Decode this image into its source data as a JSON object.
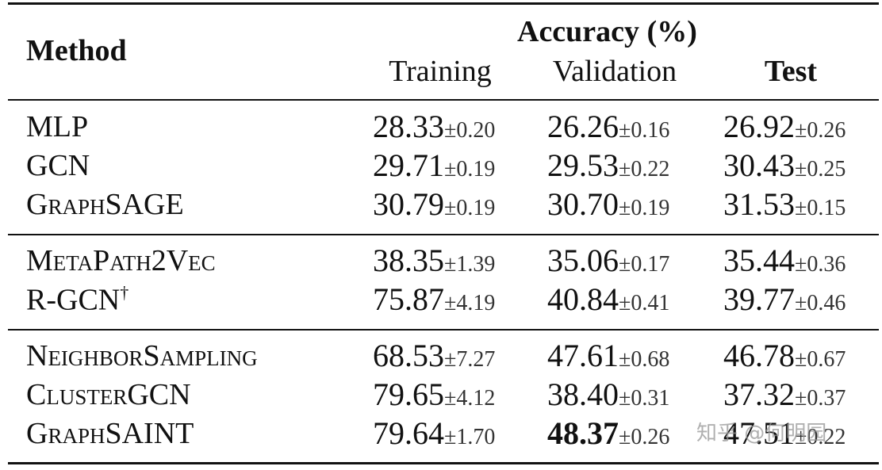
{
  "header": {
    "method": "Method",
    "group": "Accuracy (%)",
    "columns": [
      "Training",
      "Validation",
      "Test"
    ]
  },
  "groups": [
    {
      "rows": [
        {
          "method": "MLP",
          "cells": [
            {
              "mean": "28.33",
              "std": "±0.20"
            },
            {
              "mean": "26.26",
              "std": "±0.16"
            },
            {
              "mean": "26.92",
              "std": "±0.26"
            }
          ]
        },
        {
          "method": "GCN",
          "cells": [
            {
              "mean": "29.71",
              "std": "±0.19"
            },
            {
              "mean": "29.53",
              "std": "±0.22"
            },
            {
              "mean": "30.43",
              "std": "±0.25"
            }
          ]
        },
        {
          "method": "GraphSAGE",
          "cells": [
            {
              "mean": "30.79",
              "std": "±0.19"
            },
            {
              "mean": "30.70",
              "std": "±0.19"
            },
            {
              "mean": "31.53",
              "std": "±0.15"
            }
          ]
        }
      ]
    },
    {
      "rows": [
        {
          "method": "MetaPath2Vec",
          "cells": [
            {
              "mean": "38.35",
              "std": "±1.39"
            },
            {
              "mean": "35.06",
              "std": "±0.17"
            },
            {
              "mean": "35.44",
              "std": "±0.36"
            }
          ]
        },
        {
          "method": "R-GCN",
          "mark": "†",
          "cells": [
            {
              "mean": "75.87",
              "std": "±4.19"
            },
            {
              "mean": "40.84",
              "std": "±0.41"
            },
            {
              "mean": "39.77",
              "std": "±0.46"
            }
          ]
        }
      ]
    },
    {
      "rows": [
        {
          "method": "NeighborSampling",
          "cells": [
            {
              "mean": "68.53",
              "std": "±7.27"
            },
            {
              "mean": "47.61",
              "std": "±0.68"
            },
            {
              "mean": "46.78",
              "std": "±0.67"
            }
          ]
        },
        {
          "method": "ClusterGCN",
          "cells": [
            {
              "mean": "79.65",
              "std": "±4.12"
            },
            {
              "mean": "38.40",
              "std": "±0.31"
            },
            {
              "mean": "37.32",
              "std": "±0.37"
            }
          ]
        },
        {
          "method": "GraphSAINT",
          "cells": [
            {
              "mean": "79.64",
              "std": "±1.70"
            },
            {
              "mean": "48.37",
              "std": "±0.26",
              "best": true
            },
            {
              "mean": "47.51",
              "std": "±0.22"
            }
          ]
        }
      ]
    }
  ],
  "watermark": "知乎 @何明园"
}
